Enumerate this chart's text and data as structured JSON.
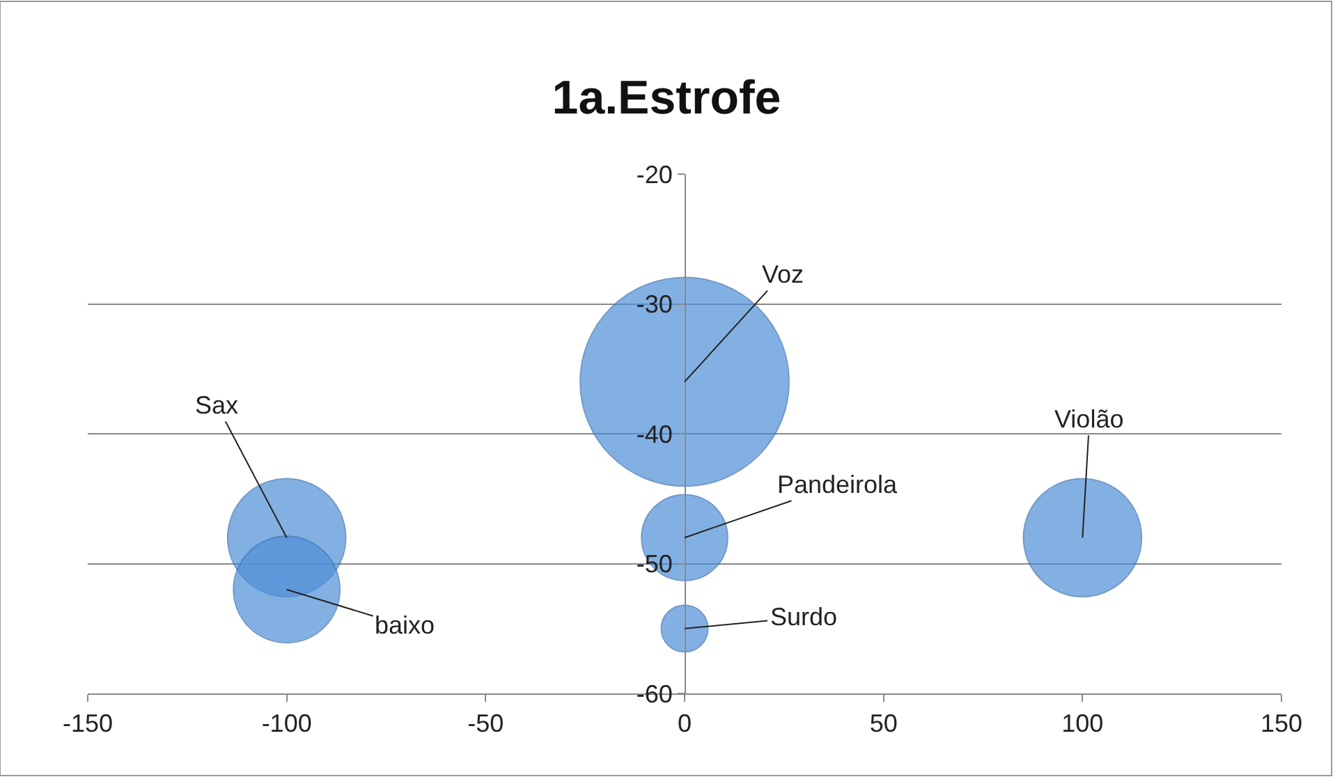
{
  "chart_data": {
    "type": "bubble",
    "title": "1a.Estrofe",
    "x": [
      0,
      -100,
      -100,
      0,
      0,
      100
    ],
    "values": [
      -36,
      -48,
      -52,
      -48,
      -55,
      -48
    ],
    "sizes": [
      1,
      0.32,
      0.26,
      0.17,
      0.05,
      0.32
    ],
    "color": "#4f8fd8",
    "xlim": [
      -150,
      150
    ],
    "xticks": [
      -150,
      -100,
      -50,
      0,
      50,
      100,
      150
    ],
    "ylim": [
      -60,
      -20
    ],
    "yticks": [
      -60,
      -50,
      -40,
      -30,
      -20
    ],
    "grid": "y",
    "legend": false,
    "annotations": [
      {
        "text": "Voz",
        "x": 0,
        "y": -36
      },
      {
        "text": "Sax",
        "x": -100,
        "y": -48
      },
      {
        "text": "baixo",
        "x": -100,
        "y": -52
      },
      {
        "text": "Pandeirola",
        "x": 0,
        "y": -48
      },
      {
        "text": "Surdo",
        "x": 0,
        "y": -55
      },
      {
        "text": "Violão",
        "x": 100,
        "y": -48
      }
    ]
  }
}
